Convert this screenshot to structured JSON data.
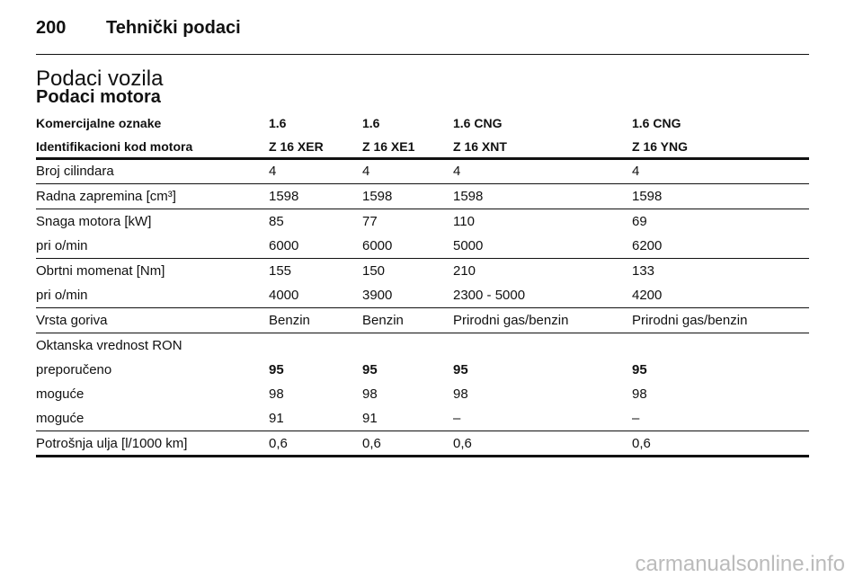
{
  "header": {
    "page_number": "200",
    "title": "Tehnički podaci"
  },
  "section": {
    "title": "Podaci vozila",
    "subtitle": "Podaci motora"
  },
  "table": {
    "header": [
      [
        "Komercijalne oznake",
        "1.6",
        "1.6",
        "1.6 CNG",
        "1.6 CNG"
      ],
      [
        "Identifikacioni kod motora",
        "Z 16 XER",
        "Z 16 XE1",
        "Z 16 XNT",
        "Z 16 YNG"
      ]
    ],
    "groups": [
      [
        {
          "cells": [
            "Broj cilindara",
            "4",
            "4",
            "4",
            "4"
          ]
        }
      ],
      [
        {
          "cells": [
            "Radna zapremina [cm³]",
            "1598",
            "1598",
            "1598",
            "1598"
          ]
        }
      ],
      [
        {
          "cells": [
            "Snaga motora [kW]",
            "85",
            "77",
            "110",
            "69"
          ]
        },
        {
          "cells": [
            "pri o/min",
            "6000",
            "6000",
            "5000",
            "6200"
          ]
        }
      ],
      [
        {
          "cells": [
            "Obrtni momenat [Nm]",
            "155",
            "150",
            "210",
            "133"
          ]
        },
        {
          "cells": [
            "pri o/min",
            "4000",
            "3900",
            "2300 - 5000",
            "4200"
          ]
        }
      ],
      [
        {
          "cells": [
            "Vrsta goriva",
            "Benzin",
            "Benzin",
            "Prirodni gas/benzin",
            "Prirodni gas/benzin"
          ]
        }
      ],
      [
        {
          "cells": [
            "Oktanska vrednost RON"
          ]
        },
        {
          "cells": [
            "preporučeno",
            "95",
            "95",
            "95",
            "95"
          ],
          "bold": true
        },
        {
          "cells": [
            "moguće",
            "98",
            "98",
            "98",
            "98"
          ]
        },
        {
          "cells": [
            "moguće",
            "91",
            "91",
            "–",
            "–"
          ]
        }
      ],
      [
        {
          "cells": [
            "Potrošnja ulja [l/1000 km]",
            "0,6",
            "0,6",
            "0,6",
            "0,6"
          ]
        }
      ]
    ]
  },
  "watermark": "carmanualsonline.info"
}
